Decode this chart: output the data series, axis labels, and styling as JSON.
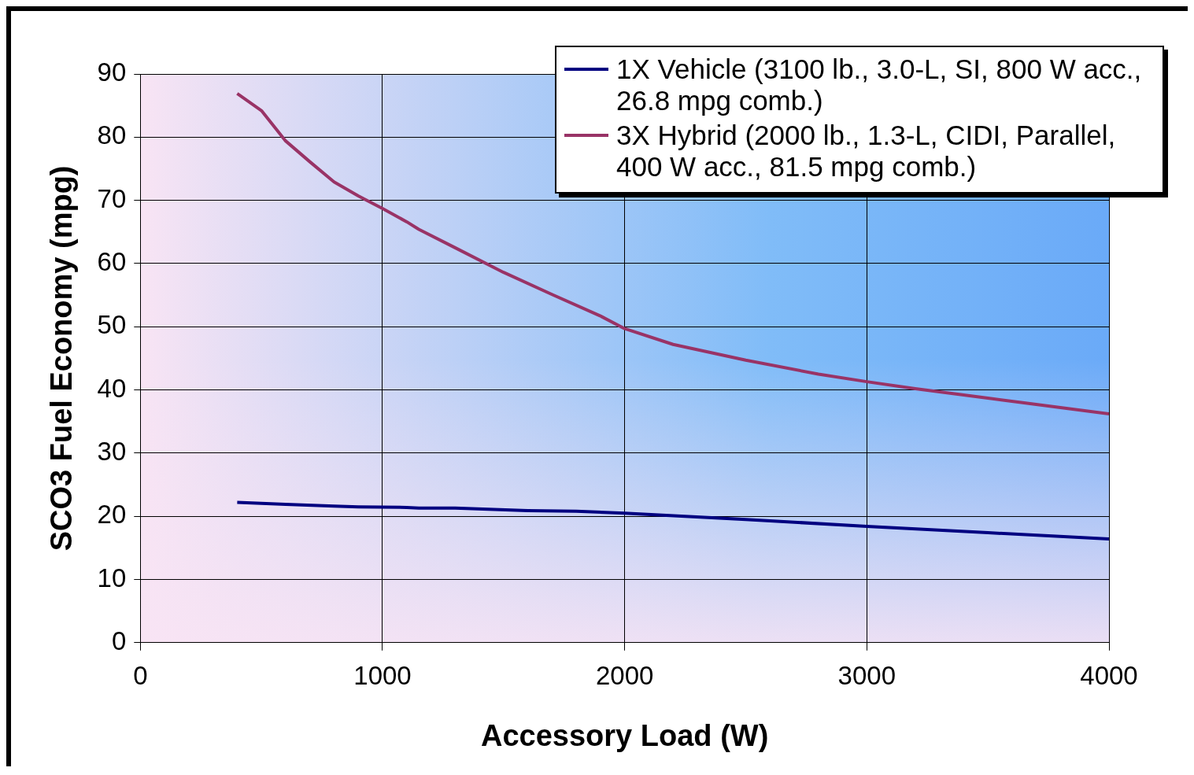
{
  "chart_data": {
    "type": "line",
    "xlabel": "Accessory Load (W)",
    "ylabel": "SCO3 Fuel Economy (mpg)",
    "xlim": [
      0,
      4000
    ],
    "xticks": [
      0,
      1000,
      2000,
      3000,
      4000
    ],
    "ylim": [
      0,
      90
    ],
    "yticks": [
      0,
      10,
      20,
      30,
      40,
      50,
      60,
      70,
      80,
      90
    ],
    "grid": true,
    "legend": "top right",
    "marker": "none",
    "line_style": "solid",
    "series": [
      {
        "name": "1X Vehicle (3100 lb., 3.0-L, SI, 800 W acc., 26.8 mpg comb.)",
        "color": "#000080",
        "x": [
          400,
          600,
          800,
          900,
          1100,
          1150,
          1300,
          1600,
          1800,
          2000,
          2500,
          3000,
          3500,
          4000
        ],
        "values": [
          22.2,
          21.9,
          21.6,
          21.5,
          21.4,
          21.3,
          21.3,
          20.9,
          20.8,
          20.5,
          19.5,
          18.4,
          17.4,
          16.4
        ]
      },
      {
        "name": "3X Hybrid (2000 lb., 1.3-L, CIDI, Parallel, 400 W acc., 81.5 mpg comb.)",
        "color": "#993366",
        "x": [
          400,
          500,
          600,
          700,
          800,
          900,
          1000,
          1100,
          1150,
          1300,
          1500,
          1700,
          1900,
          2000,
          2200,
          2500,
          2800,
          3000,
          3200,
          3500,
          4000
        ],
        "values": [
          86.9,
          84.2,
          79.4,
          76.1,
          72.9,
          70.7,
          68.7,
          66.6,
          65.4,
          62.5,
          58.6,
          55.1,
          51.7,
          49.7,
          47.2,
          44.7,
          42.5,
          41.3,
          40.2,
          38.7,
          36.2
        ]
      }
    ]
  }
}
